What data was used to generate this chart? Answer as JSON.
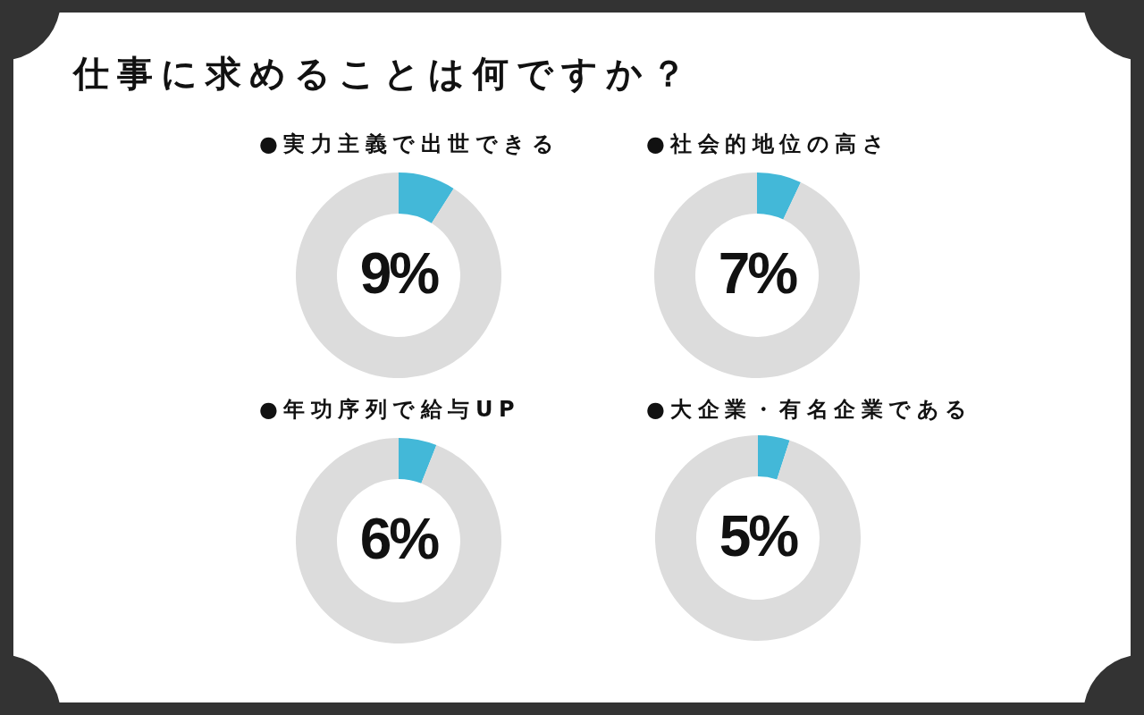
{
  "chart_data": [
    {
      "type": "donut",
      "title": "●実力主義で出世できる",
      "categories": [
        null,
        null
      ],
      "values": [
        9,
        91
      ],
      "colors": [
        "#43b8d8",
        "#dcdcdc"
      ],
      "value_labels": [
        "9%",
        null
      ],
      "annotations": [
        "仕事に求めることは何ですか？"
      ]
    },
    {
      "type": "donut",
      "title": "●社会的地位の高さ",
      "categories": [
        null,
        null
      ],
      "values": [
        7,
        93
      ],
      "colors": [
        "#43b8d8",
        "#dcdcdc"
      ],
      "value_labels": [
        "7%",
        null
      ]
    },
    {
      "type": "donut",
      "title": "●年功序列で給与UP",
      "categories": [
        null,
        null
      ],
      "values": [
        6,
        94
      ],
      "colors": [
        "#43b8d8",
        "#dcdcdc"
      ],
      "value_labels": [
        "6%",
        null
      ]
    },
    {
      "type": "donut",
      "title": "●大企業・有名企業である",
      "categories": [
        null,
        null
      ],
      "values": [
        5,
        95
      ],
      "colors": [
        "#43b8d8",
        "#dcdcdc"
      ],
      "value_labels": [
        "5%",
        null
      ]
    }
  ]
}
